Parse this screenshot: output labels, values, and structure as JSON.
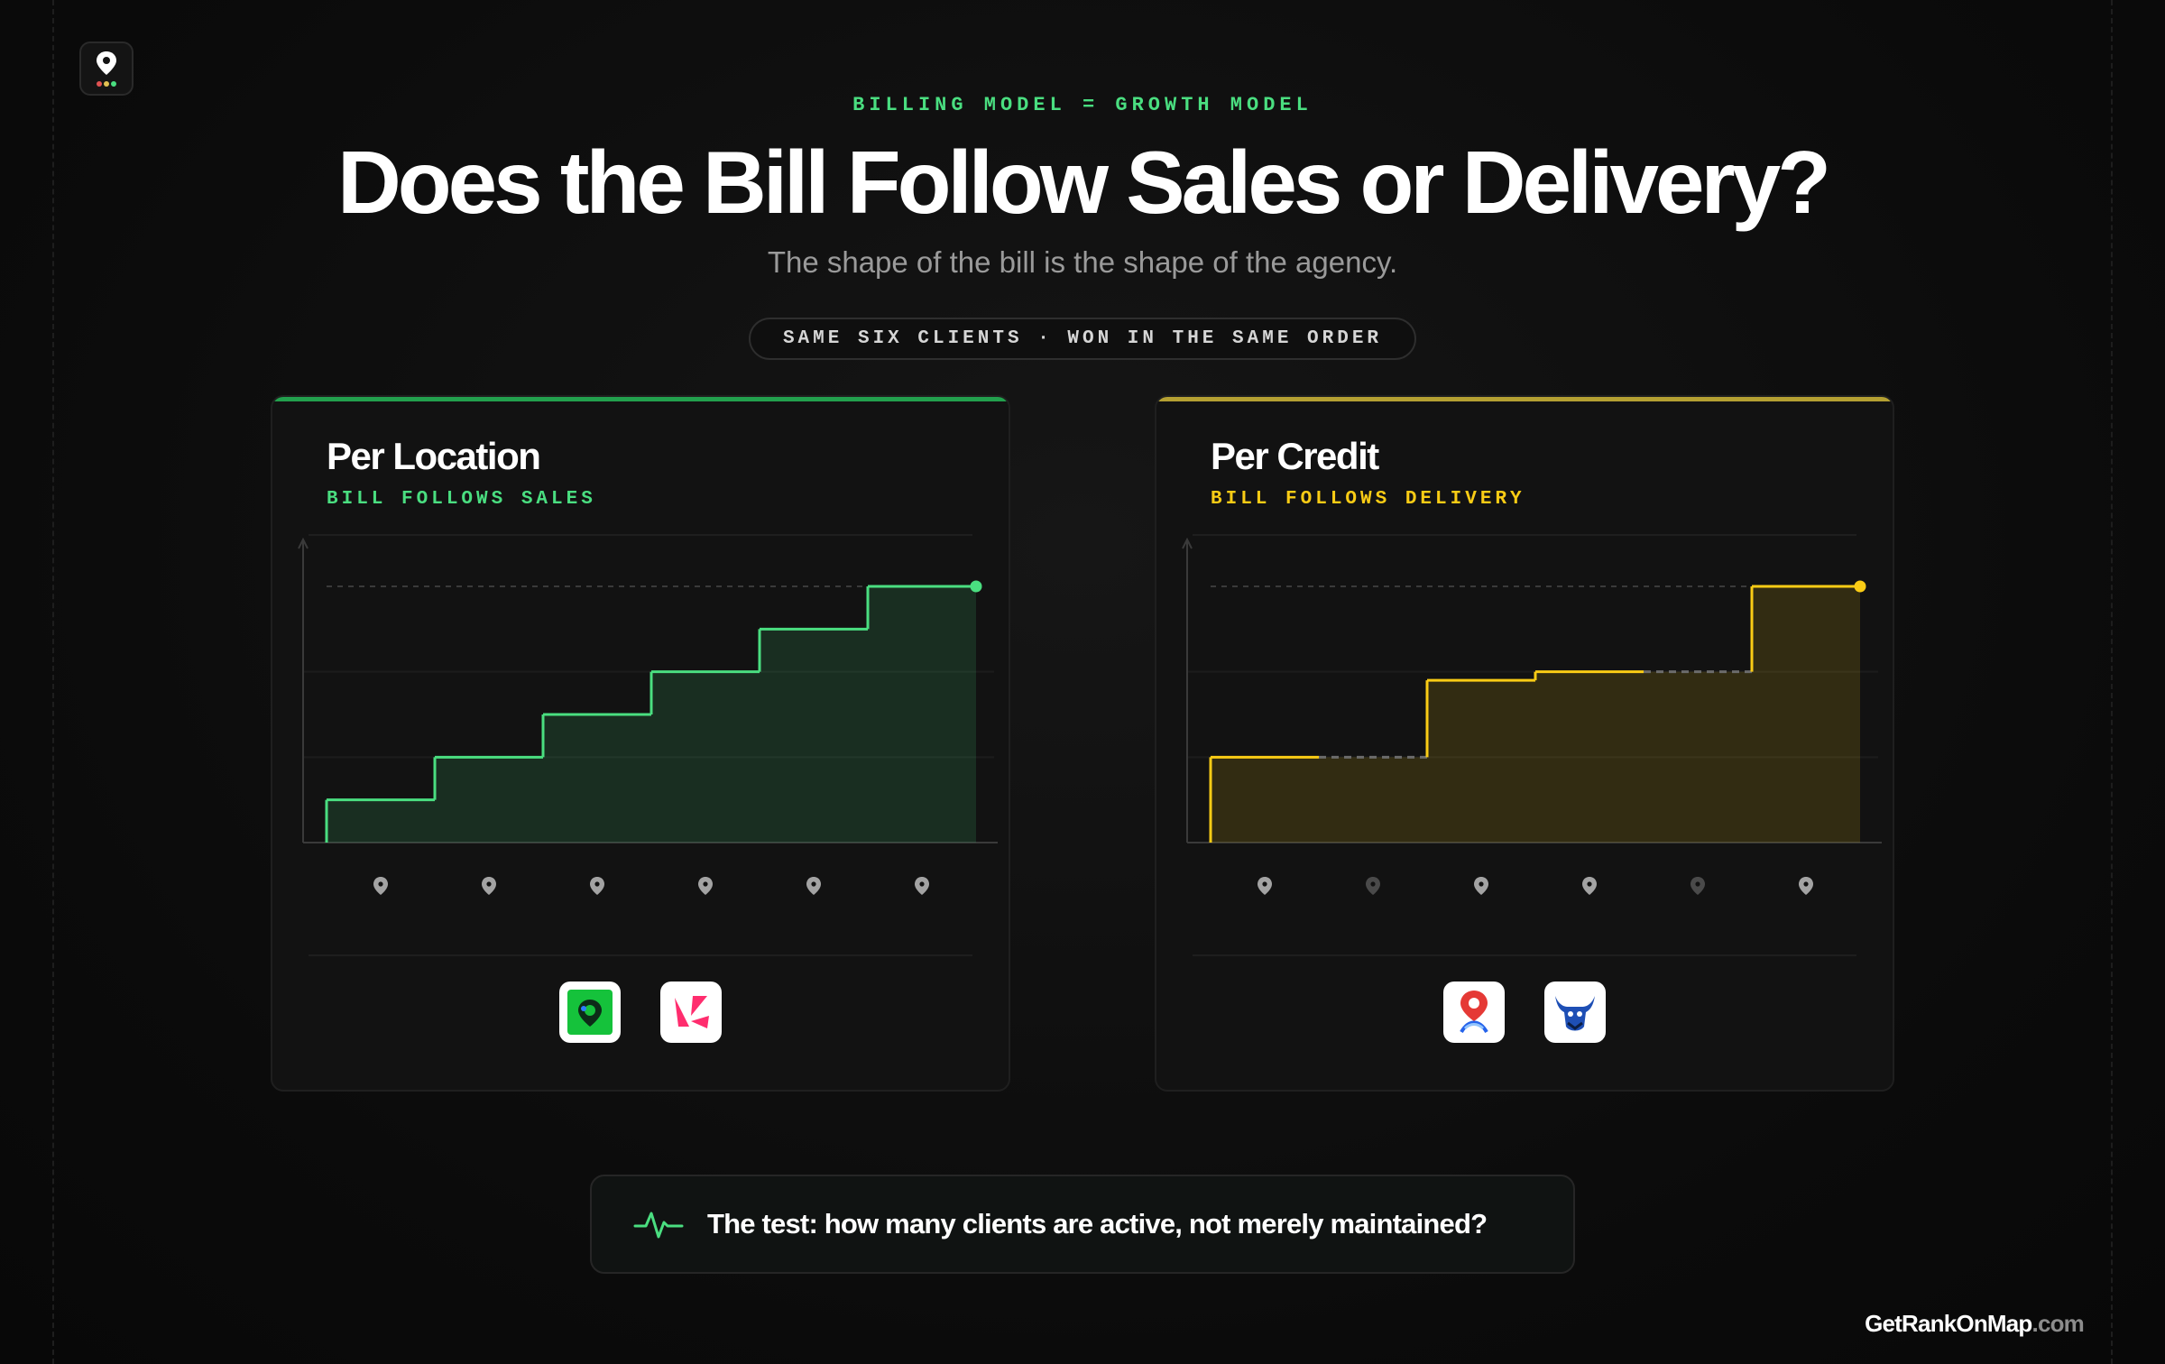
{
  "header": {
    "eyebrow": "BILLING MODEL = GROWTH MODEL",
    "title": "Does the Bill Follow Sales or Delivery?",
    "subtitle": "The shape of the bill is the shape of the agency.",
    "pill": "SAME SIX CLIENTS · WON IN THE SAME ORDER"
  },
  "colors": {
    "green": "#4ade80",
    "yellow": "#facc15"
  },
  "panels": [
    {
      "title": "Per Location",
      "subtitle": "BILL FOLLOWS SALES",
      "tools": [
        "map-pin-green-app-icon",
        "pink-chevron-app-icon"
      ]
    },
    {
      "title": "Per Credit",
      "subtitle": "BILL FOLLOWS DELIVERY",
      "tools": [
        "map-pin-ribbon-app-icon",
        "bull-mascot-app-icon"
      ]
    }
  ],
  "chart_data": [
    {
      "type": "area",
      "step": true,
      "title": "Per Location",
      "x": [
        1,
        2,
        3,
        4,
        5,
        6
      ],
      "values": [
        1,
        2,
        3,
        4,
        5,
        6
      ],
      "active_clients": [
        true,
        true,
        true,
        true,
        true,
        true
      ],
      "ylim": [
        0,
        6
      ],
      "color": "#4ade80",
      "grid": true
    },
    {
      "type": "area",
      "step": true,
      "title": "Per Credit",
      "x": [
        1,
        2,
        3,
        4,
        5,
        6
      ],
      "values": [
        2,
        2,
        3.8,
        4,
        4,
        6
      ],
      "active_clients": [
        true,
        false,
        true,
        true,
        false,
        true
      ],
      "ylim": [
        0,
        6
      ],
      "color": "#facc15",
      "grid": true
    }
  ],
  "footer": {
    "test_text": "The test: how many clients are active, not merely maintained?",
    "brand_main": "GetRankOnMap",
    "brand_tld": ".com"
  }
}
